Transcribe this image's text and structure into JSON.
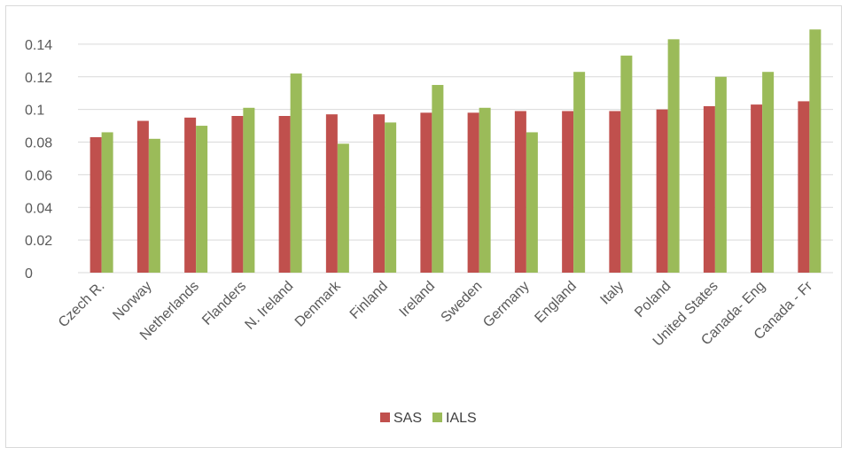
{
  "chart_data": {
    "type": "bar",
    "categories": [
      "Czech R.",
      "Norway",
      "Netherlands",
      "Flanders",
      "N. Ireland",
      "Denmark",
      "Finland",
      "Ireland",
      "Sweden",
      "Germany",
      "England",
      "Italy",
      "Poland",
      "United States",
      "Canada- Eng",
      "Canada - Fr"
    ],
    "series": [
      {
        "name": "SAS",
        "color": "#c0504d",
        "values": [
          0.083,
          0.093,
          0.095,
          0.096,
          0.096,
          0.097,
          0.097,
          0.098,
          0.098,
          0.099,
          0.099,
          0.099,
          0.1,
          0.102,
          0.103,
          0.105
        ]
      },
      {
        "name": "IALS",
        "color": "#9bbb59",
        "values": [
          0.086,
          0.082,
          0.09,
          0.101,
          0.122,
          0.079,
          0.092,
          0.115,
          0.101,
          0.086,
          0.123,
          0.133,
          0.143,
          0.12,
          0.123,
          0.149
        ]
      }
    ],
    "y_ticks": [
      "0",
      "0.02",
      "0.04",
      "0.06",
      "0.08",
      "0.1",
      "0.12",
      "0.14"
    ],
    "ylim": [
      0,
      0.16
    ],
    "grid": true,
    "legend_position": "bottom"
  }
}
